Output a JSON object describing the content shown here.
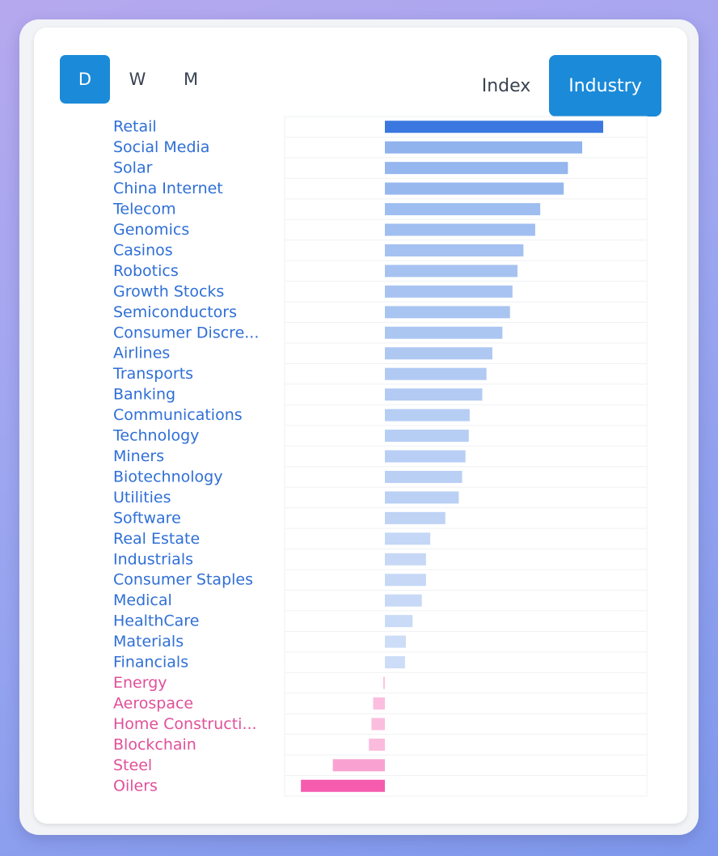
{
  "period_tabs": {
    "day": "D",
    "week": "W",
    "month": "M",
    "selected": "D"
  },
  "mode_tabs": {
    "index": "Index",
    "industry": "Industry",
    "selected": "Industry"
  },
  "colors": {
    "accent": "#1b8ad8",
    "positive_label": "#2f6fd6",
    "negative_label": "#e0509a",
    "positive_bar_strong": "#3a78e0",
    "negative_bar_strong": "#f55cae"
  },
  "chart_data": {
    "type": "bar",
    "orientation": "horizontal",
    "title": "",
    "xlabel": "",
    "ylabel": "",
    "xlim": [
      -1.2,
      3.1
    ],
    "grid": true,
    "categories": [
      "Retail",
      "Social Media",
      "Solar",
      "China Internet",
      "Telecom",
      "Genomics",
      "Casinos",
      "Robotics",
      "Growth Stocks",
      "Semiconductors",
      "Consumer Discre...",
      "Airlines",
      "Transports",
      "Banking",
      "Communications",
      "Technology",
      "Miners",
      "Biotechnology",
      "Utilities",
      "Software",
      "Real Estate",
      "Industrials",
      "Consumer Staples",
      "Medical",
      "HealthCare",
      "Materials",
      "Financials",
      "Energy",
      "Aerospace",
      "Home Constructi...",
      "Blockchain",
      "Steel",
      "Oilers"
    ],
    "values": [
      2.6,
      2.35,
      2.18,
      2.13,
      1.85,
      1.79,
      1.65,
      1.58,
      1.52,
      1.49,
      1.4,
      1.28,
      1.21,
      1.16,
      1.01,
      1.0,
      0.96,
      0.92,
      0.88,
      0.72,
      0.54,
      0.49,
      0.49,
      0.44,
      0.33,
      0.25,
      0.24,
      -0.02,
      -0.14,
      -0.16,
      -0.19,
      -0.62,
      -1.0
    ]
  }
}
